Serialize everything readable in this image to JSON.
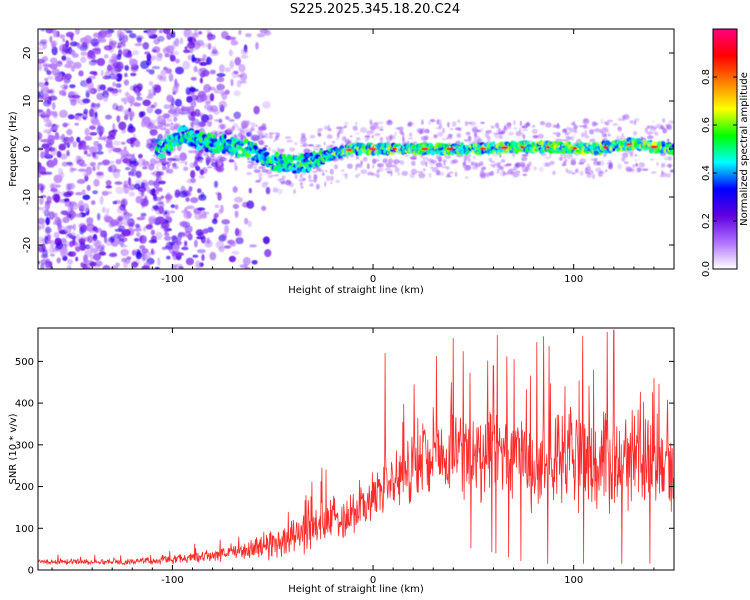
{
  "title": "S225.2025.345.18.20.C24",
  "chart_data": [
    {
      "type": "heatmap",
      "xlabel": "Height of straight line (km)",
      "ylabel": "Frequency (Hz)",
      "xlim": [
        -167,
        150
      ],
      "ylim": [
        -25,
        25
      ],
      "xticks": [
        -100,
        0,
        100
      ],
      "yticks": [
        -20,
        -10,
        0,
        10,
        20
      ],
      "colorbar": {
        "label": "Normalized spectral amplitude",
        "range": [
          0,
          1
        ],
        "ticks": [
          "0.0",
          "0.2",
          "0.4",
          "0.6",
          "0.8"
        ],
        "colors": [
          "#ffffff",
          "#b070ff",
          "#6000e0",
          "#0000ff",
          "#00ffff",
          "#00ff00",
          "#ffff00",
          "#ff8000",
          "#ff0000",
          "#ff0080"
        ]
      },
      "ridge": [
        {
          "x": -105,
          "f": 0.0
        },
        {
          "x": -95,
          "f": 3.0
        },
        {
          "x": -85,
          "f": 1.5
        },
        {
          "x": -75,
          "f": 1.0
        },
        {
          "x": -62,
          "f": 0.0
        },
        {
          "x": -50,
          "f": -2.5
        },
        {
          "x": -40,
          "f": -3.5
        },
        {
          "x": -30,
          "f": -2.5
        },
        {
          "x": -20,
          "f": -1.0
        },
        {
          "x": -10,
          "f": 0.0
        },
        {
          "x": 0,
          "f": 0.0
        },
        {
          "x": 20,
          "f": 0.0
        },
        {
          "x": 50,
          "f": 0.0
        },
        {
          "x": 80,
          "f": 0.5
        },
        {
          "x": 110,
          "f": 0.0
        },
        {
          "x": 128,
          "f": 1.0
        },
        {
          "x": 150,
          "f": 0.0
        }
      ],
      "noise_region_xmax": -75
    },
    {
      "type": "line",
      "xlabel": "Height of straight line (km)",
      "ylabel": "SNR (10 * v/v)",
      "xlim": [
        -167,
        150
      ],
      "ylim": [
        0,
        580
      ],
      "xticks": [
        -100,
        0,
        100
      ],
      "yticks": [
        0,
        100,
        200,
        300,
        400,
        500
      ],
      "series": [
        {
          "name": "SNR",
          "color": "#ff2a2a",
          "envelope_x": [
            -167,
            -120,
            -100,
            -80,
            -60,
            -50,
            -40,
            -30,
            -20,
            -10,
            0,
            10,
            20,
            30,
            40,
            50,
            60,
            80,
            100,
            120,
            140,
            150
          ],
          "envelope_mean": [
            20,
            20,
            25,
            35,
            50,
            65,
            80,
            100,
            120,
            140,
            170,
            215,
            245,
            270,
            285,
            285,
            285,
            255,
            260,
            270,
            265,
            255
          ],
          "envelope_spread": [
            8,
            8,
            12,
            18,
            30,
            45,
            55,
            60,
            65,
            70,
            70,
            80,
            90,
            110,
            125,
            130,
            135,
            135,
            140,
            145,
            140,
            130
          ],
          "peaks": [
            {
              "x": 6,
              "y": 520
            },
            {
              "x": 30,
              "y": 390
            },
            {
              "x": 60,
              "y": 490
            },
            {
              "x": 85,
              "y": 560
            },
            {
              "x": 110,
              "y": 480
            },
            {
              "x": 120,
              "y": 575
            },
            {
              "x": 140,
              "y": 460
            }
          ]
        }
      ]
    }
  ]
}
